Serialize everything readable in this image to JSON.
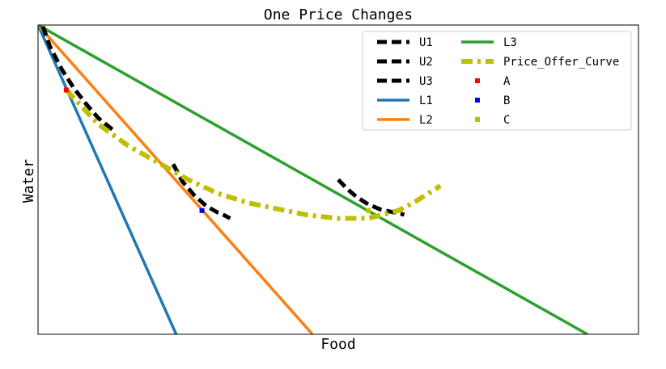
{
  "chart_data": {
    "type": "line",
    "title": "One Price Changes",
    "xlabel": "Food",
    "ylabel": "Water",
    "xlim": [
      0,
      100
    ],
    "ylim": [
      0,
      100
    ],
    "xticks_visible": false,
    "yticks_visible": false,
    "grid": false,
    "legend": {
      "placement": "top-right",
      "ncol": 2
    },
    "series": [
      {
        "name": "U1",
        "key": "U1",
        "color": "#000000",
        "style": "dashed-thick",
        "x": [
          0,
          2,
          4,
          6,
          8,
          10,
          12.5
        ],
        "y": [
          104,
          93,
          85.5,
          79.5,
          74.5,
          70,
          66
        ]
      },
      {
        "name": "U2",
        "key": "U2",
        "color": "#000000",
        "style": "dashed-thick",
        "x": [
          22.5,
          24,
          26,
          28,
          30,
          31,
          32
        ],
        "y": [
          55,
          49.5,
          45,
          41.5,
          39.3,
          38.5,
          37.5
        ]
      },
      {
        "name": "U3",
        "key": "U3",
        "color": "#000000",
        "style": "dashed-thick",
        "x": [
          50,
          51.5,
          53,
          55,
          57,
          59,
          61
        ],
        "y": [
          50,
          47,
          44.5,
          42,
          40.4,
          39.5,
          38.7
        ]
      },
      {
        "name": "L1",
        "key": "L1",
        "color": "#1f77b4",
        "style": "solid",
        "x": [
          0,
          23
        ],
        "y": [
          100,
          0
        ]
      },
      {
        "name": "L2",
        "key": "L2",
        "color": "#ff7f0e",
        "style": "solid",
        "x": [
          0,
          45.7
        ],
        "y": [
          100,
          0
        ]
      },
      {
        "name": "L3",
        "key": "L3",
        "color": "#2ca02c",
        "style": "solid",
        "x": [
          0,
          91.5
        ],
        "y": [
          100,
          0
        ]
      },
      {
        "name": "Price_Offer_Curve",
        "key": "POC",
        "color": "#bfbf00",
        "style": "dashdot-thick",
        "x": [
          4.7,
          10,
          15,
          20,
          25,
          30,
          35,
          40,
          45,
          50,
          55,
          60,
          62.5,
          67
        ],
        "y": [
          79,
          68,
          61,
          55.5,
          50,
          45.5,
          42.5,
          40.5,
          38.5,
          37.5,
          37.5,
          40,
          42.5,
          48
        ]
      },
      {
        "name": "A",
        "key": "A",
        "color": "#ff0000",
        "style": "marker",
        "x": [
          4.7
        ],
        "y": [
          79
        ]
      },
      {
        "name": "B",
        "key": "B",
        "color": "#0000ff",
        "style": "marker",
        "x": [
          27.3
        ],
        "y": [
          40
        ]
      },
      {
        "name": "C",
        "key": "C",
        "color": "#bfbf00",
        "style": "marker",
        "x": [
          55
        ],
        "y": [
          40
        ]
      }
    ]
  }
}
